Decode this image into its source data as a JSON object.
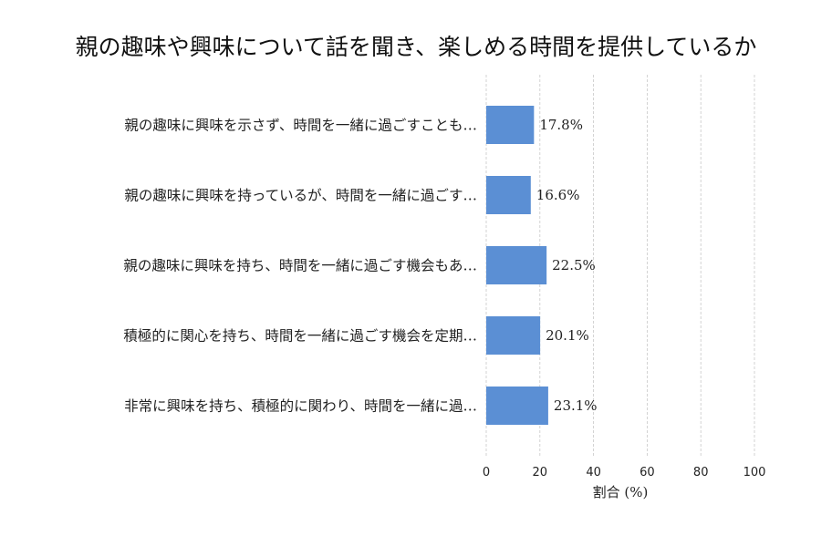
{
  "chart_data": {
    "type": "bar",
    "orientation": "horizontal",
    "title": "親の趣味や興味について話を聞き、楽しめる時間を提供しているか",
    "xlabel": "割合 (%)",
    "ylabel": "",
    "xlim": [
      0,
      100
    ],
    "xticks": [
      0,
      20,
      40,
      60,
      80,
      100
    ],
    "grid": "vertical-dashed",
    "bar_color": "#5b8fd4",
    "categories": [
      "親の趣味に興味を示さず、時間を一緒に過ごすことも…",
      "親の趣味に興味を持っているが、時間を一緒に過ごす…",
      "親の趣味に興味を持ち、時間を一緒に過ごす機会もあ…",
      "積極的に関心を持ち、時間を一緒に過ごす機会を定期…",
      "非常に興味を持ち、積極的に関わり、時間を一緒に過…"
    ],
    "values": [
      17.8,
      16.6,
      22.5,
      20.1,
      23.1
    ],
    "data_labels": [
      "17.8%",
      "16.6%",
      "22.5%",
      "20.1%",
      "23.1%"
    ]
  }
}
